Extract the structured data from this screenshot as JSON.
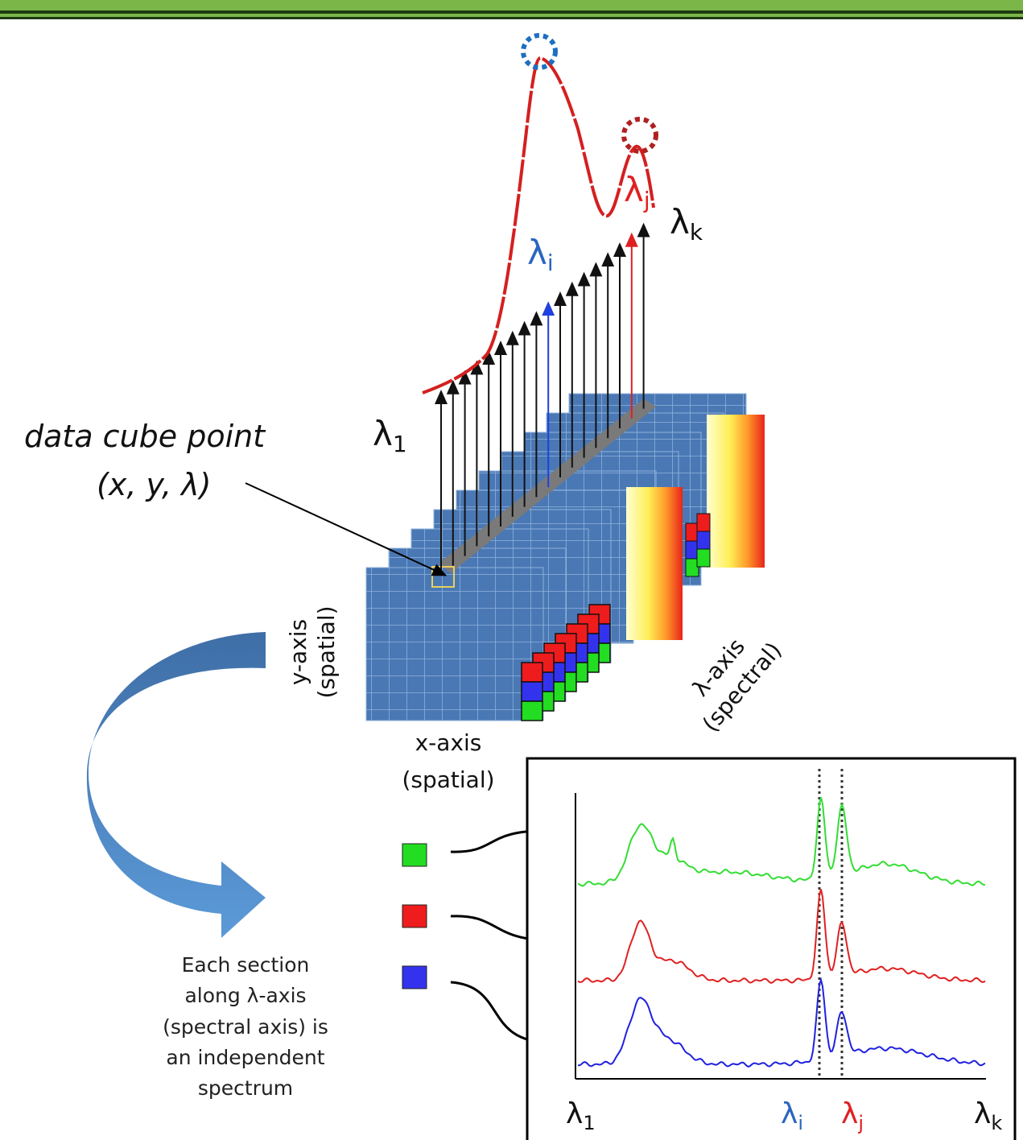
{
  "cube": {
    "point_label": "data cube point",
    "point_coords": "(x, y, λ)",
    "y_axis": [
      "y-axis",
      "(spatial)"
    ],
    "x_axis": [
      "x-axis",
      "(spatial)"
    ],
    "lambda_axis": [
      "λ-axis",
      "(spectral)"
    ],
    "wavelengths": [
      {
        "symbol": "λ",
        "sub": "1"
      },
      {
        "symbol": "λ",
        "sub": "i"
      },
      {
        "symbol": "λ",
        "sub": "j"
      },
      {
        "symbol": "λ",
        "sub": "k"
      }
    ]
  },
  "note": [
    "Each section",
    "along λ-axis",
    "(spectral axis) is",
    "an independent",
    "spectrum"
  ],
  "spectra_panel": {
    "axis_labels": [
      {
        "symbol": "λ",
        "sub": "1"
      },
      {
        "symbol": "λ",
        "sub": "i"
      },
      {
        "symbol": "λ",
        "sub": "j"
      },
      {
        "symbol": "λ",
        "sub": "k"
      }
    ]
  }
}
